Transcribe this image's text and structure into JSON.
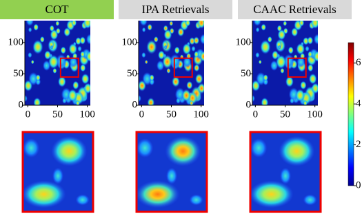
{
  "panels": [
    {
      "title": "COT"
    },
    {
      "title": "IPA Retrievals"
    },
    {
      "title": "CAAC Retrievals"
    }
  ],
  "xlim": [
    -5,
    105
  ],
  "ylim": [
    0,
    135
  ],
  "xticks": [
    0,
    50,
    100
  ],
  "yticks": [
    0,
    50,
    100
  ],
  "colorbar": {
    "lim": [
      0,
      7
    ],
    "ticks": [
      0,
      2,
      4,
      6
    ]
  }
}
